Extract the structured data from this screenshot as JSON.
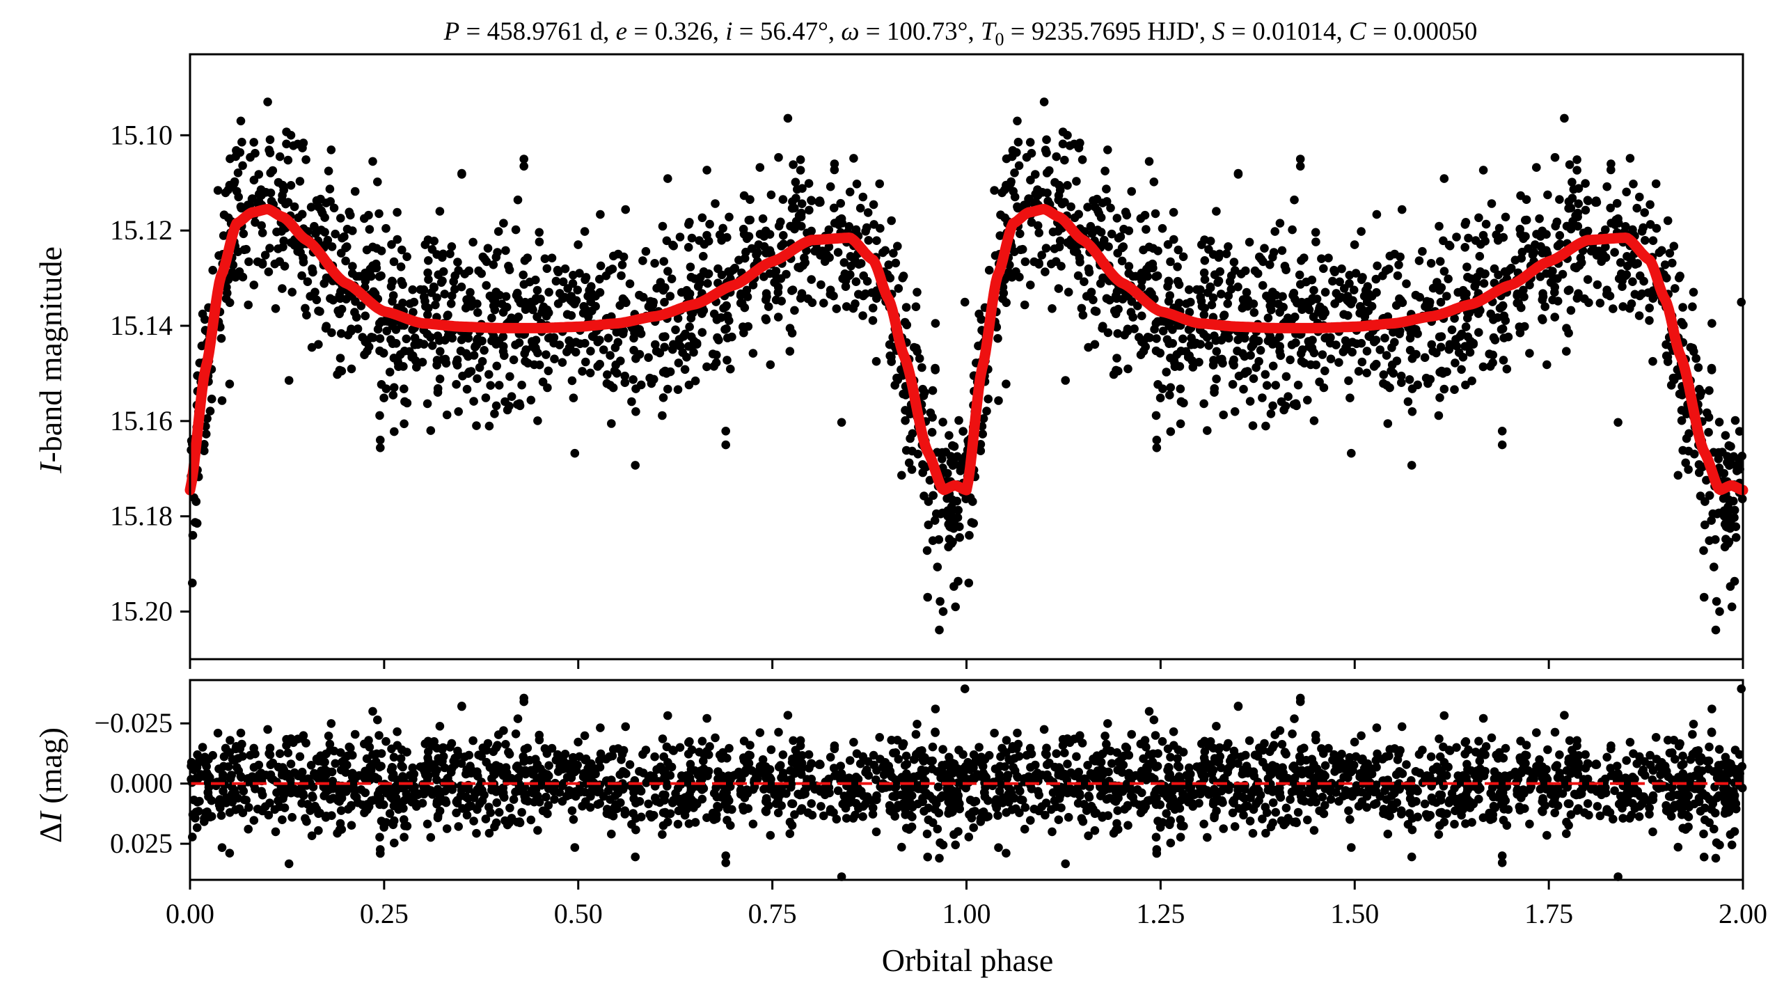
{
  "chart_data": [
    {
      "panel": "light-curve",
      "type": "scatter",
      "title": "P = 458.9761 d, e = 0.326, i = 56.47°, ω = 100.73°, T0 = 9235.7695 HJD', S = 0.01014, C = 0.00050",
      "title_parts": {
        "P_sym": "P",
        "P_val": " = 458.9761 d, ",
        "e_sym": "e",
        "e_val": " = 0.326, ",
        "i_sym": "i",
        "i_val": " = 56.47°, ",
        "w_sym": "ω",
        "w_val": " = 100.73°, ",
        "T_sym": "T",
        "T_sub": "0",
        "T_val": " = 9235.7695 HJD', ",
        "S_sym": "S",
        "S_val": " = 0.01014, ",
        "C_sym": "C",
        "C_val": " = 0.00050"
      },
      "xlabel": "",
      "ylabel_italic": "I",
      "ylabel_rest": "-band magnitude",
      "xlim": [
        0.0,
        2.0
      ],
      "ylim": [
        15.21,
        15.083
      ],
      "y_inverted": true,
      "yticks": [
        "15.10",
        "15.12",
        "15.14",
        "15.16",
        "15.18",
        "15.20"
      ],
      "ytick_values": [
        15.1,
        15.12,
        15.14,
        15.16,
        15.18,
        15.2
      ],
      "xticks": [
        0.0,
        0.25,
        0.5,
        0.75,
        1.0,
        1.25,
        1.5,
        1.75,
        2.0
      ],
      "model_color": "#ee1111",
      "point_color": "#000000",
      "model_series": {
        "name": "model",
        "type": "line",
        "phase": [
          0.0,
          0.02,
          0.04,
          0.06,
          0.08,
          0.1,
          0.12,
          0.15,
          0.2,
          0.25,
          0.3,
          0.35,
          0.4,
          0.45,
          0.5,
          0.55,
          0.6,
          0.65,
          0.7,
          0.75,
          0.8,
          0.85,
          0.88,
          0.9,
          0.92,
          0.95,
          0.97,
          0.985,
          1.0
        ],
        "mag": [
          15.1745,
          15.149,
          15.1295,
          15.1185,
          15.1162,
          15.1155,
          15.1172,
          15.122,
          15.131,
          15.137,
          15.1395,
          15.1402,
          15.1405,
          15.1405,
          15.1402,
          15.1395,
          15.138,
          15.1355,
          15.1315,
          15.1265,
          15.122,
          15.1215,
          15.1262,
          15.1345,
          15.1465,
          15.1665,
          15.1745,
          15.1735,
          15.1745
        ]
      },
      "data_series": {
        "name": "observations",
        "n_points_per_cycle": 1350,
        "scatter_mag": 0.0095,
        "phase_folded_cycles": 2,
        "outliers": [
          {
            "phase": 0.1,
            "mag": 15.093
          },
          {
            "phase": 0.13,
            "mag": 15.1
          },
          {
            "phase": 0.35,
            "mag": 15.108
          },
          {
            "phase": 0.43,
            "mag": 15.105
          },
          {
            "phase": 0.83,
            "mag": 15.106
          },
          {
            "phase": 0.97,
            "mag": 15.2
          },
          {
            "phase": 0.95,
            "mag": 15.197
          },
          {
            "phase": 0.003,
            "mag": 15.194
          },
          {
            "phase": 0.245,
            "mag": 15.164
          },
          {
            "phase": 0.69,
            "mag": 15.165
          },
          {
            "phase": 0.31,
            "mag": 15.162
          }
        ]
      }
    },
    {
      "panel": "residuals",
      "type": "scatter",
      "title": "",
      "xlabel": "Orbital phase",
      "ylabel_prefix": "Δ",
      "ylabel_italic": "I",
      "ylabel_rest": " (mag)",
      "xlim": [
        0.0,
        2.0
      ],
      "ylim": [
        0.04,
        -0.043
      ],
      "y_inverted": true,
      "yticks": [
        "−0.025",
        "0.000",
        "0.025"
      ],
      "ytick_values": [
        -0.025,
        0.0,
        0.025
      ],
      "xticks": [
        "0.00",
        "0.25",
        "0.50",
        "0.75",
        "1.00",
        "1.25",
        "1.50",
        "1.75",
        "2.00"
      ],
      "xtick_values": [
        0.0,
        0.25,
        0.5,
        0.75,
        1.0,
        1.25,
        1.5,
        1.75,
        2.0
      ],
      "zero_line": {
        "value": 0.0,
        "style": "dashed",
        "color": "#ee1111"
      },
      "data_series": {
        "name": "residuals",
        "scatter_mag": 0.0095,
        "outliers": [
          {
            "phase": 0.35,
            "mag": -0.032
          },
          {
            "phase": 0.43,
            "mag": -0.034
          },
          {
            "phase": 0.245,
            "mag": 0.029
          },
          {
            "phase": 0.69,
            "mag": 0.03
          },
          {
            "phase": 0.965,
            "mag": 0.031
          },
          {
            "phase": 0.96,
            "mag": -0.031
          }
        ]
      }
    }
  ]
}
